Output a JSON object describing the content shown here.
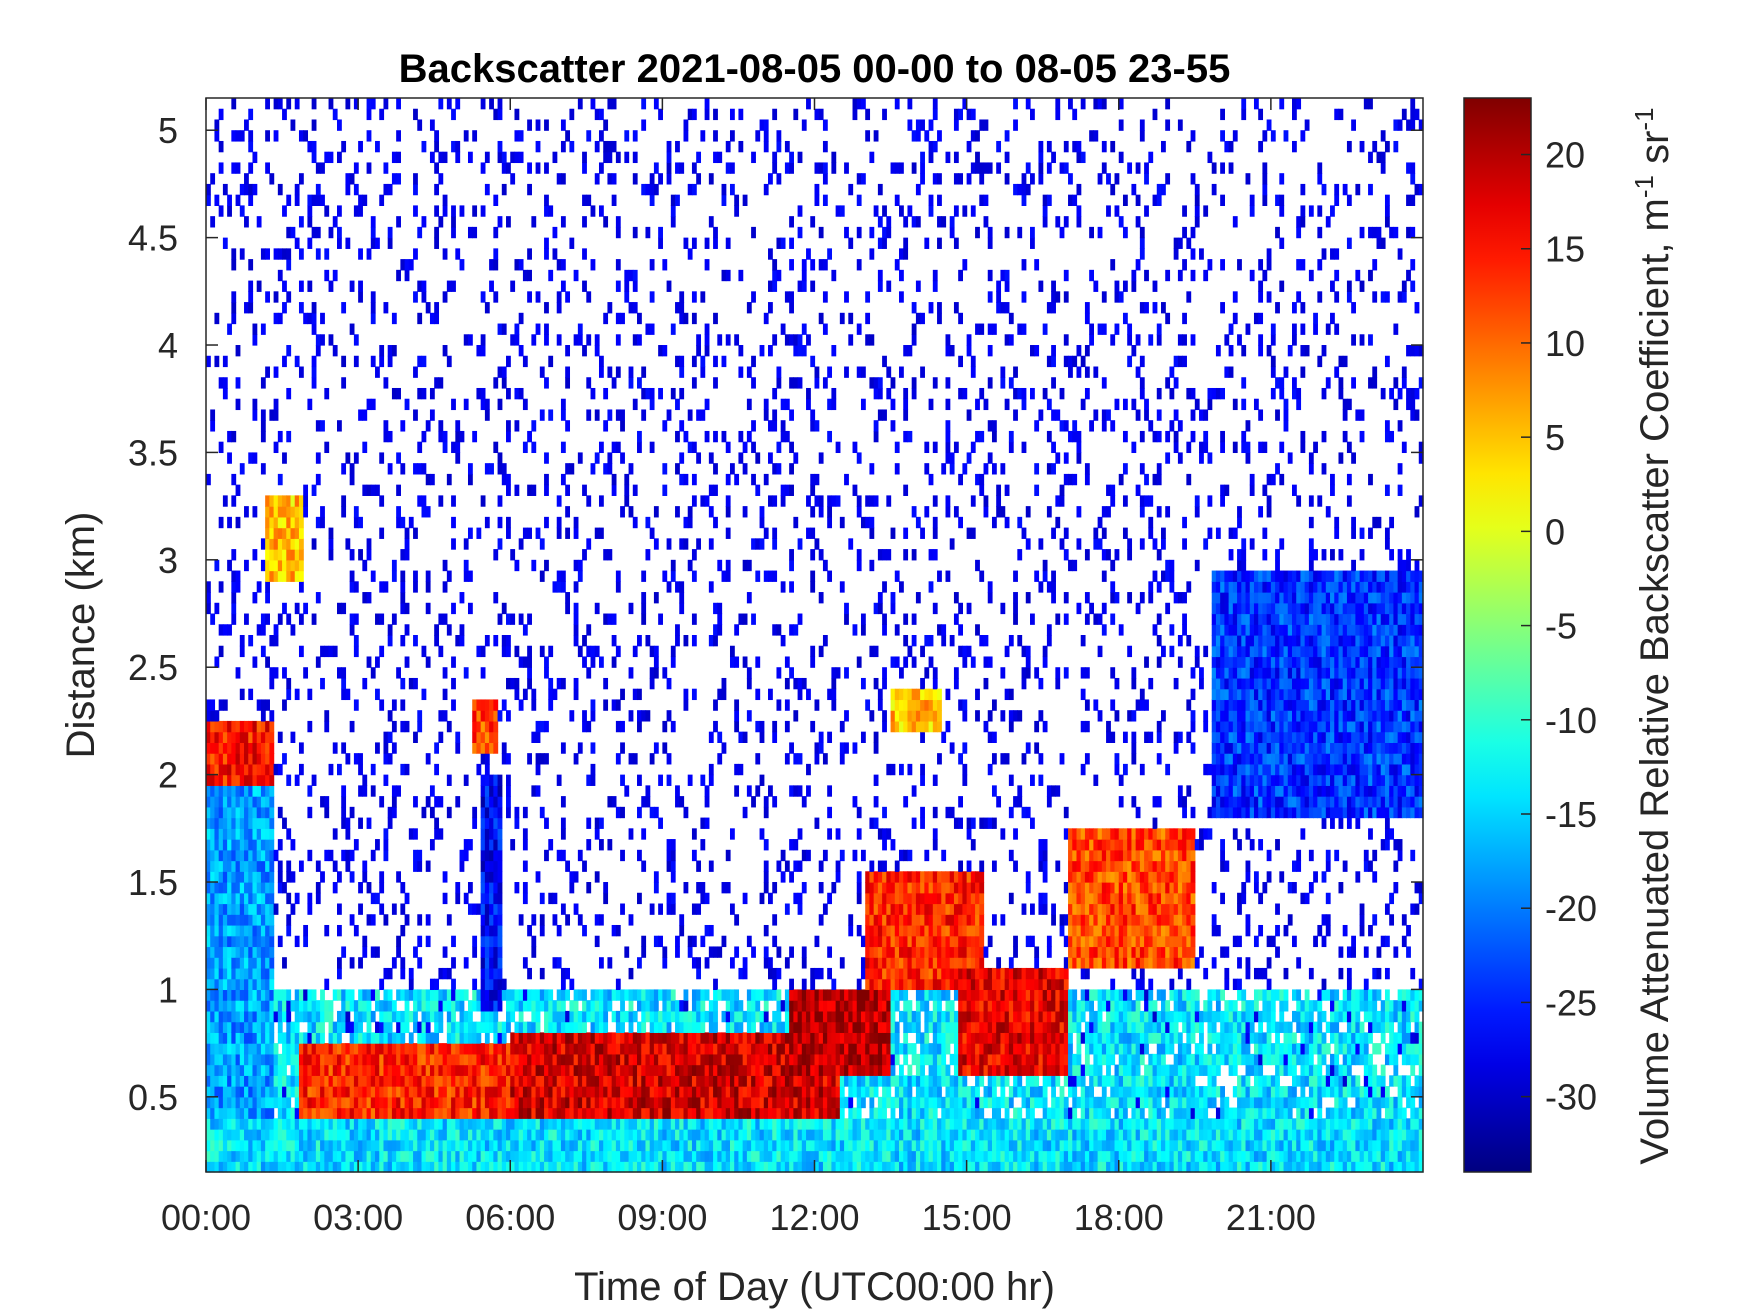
{
  "chart_data": {
    "type": "heatmap",
    "title": "Backscatter 2021-08-05 00-00 to 08-05 23-55",
    "xlabel": "Time of Day (UTC00:00 hr)",
    "ylabel": "Distance (km)",
    "colorbar_label": "Volume Attenuated Relative Backscatter Coefficient, m",
    "colorbar_label_sup1": "-1",
    "colorbar_label_mid": " sr",
    "colorbar_label_sup2": "-1",
    "colormap": "jet",
    "xlim": [
      0,
      24
    ],
    "ylim": [
      0.15,
      5.15
    ],
    "clim": [
      -34,
      23
    ],
    "x_ticks": [
      0,
      3,
      6,
      9,
      12,
      15,
      18,
      21
    ],
    "x_tick_labels": [
      "00:00",
      "03:00",
      "06:00",
      "09:00",
      "12:00",
      "15:00",
      "18:00",
      "21:00"
    ],
    "y_ticks": [
      0.5,
      1,
      1.5,
      2,
      2.5,
      3,
      3.5,
      4,
      4.5,
      5
    ],
    "y_tick_labels": [
      "0.5",
      "1",
      "1.5",
      "2",
      "2.5",
      "3",
      "3.5",
      "4",
      "4.5",
      "5"
    ],
    "colorbar_ticks": [
      20,
      15,
      10,
      5,
      0,
      -5,
      -10,
      -15,
      -20,
      -25,
      -30
    ],
    "colorbar_tick_labels": [
      "20",
      "15",
      "10",
      "5",
      "0",
      "-5",
      "-10",
      "-15",
      "-20",
      "-25",
      "-30"
    ],
    "grid": false,
    "features": [
      {
        "x_range": [
          0,
          1.3
        ],
        "y_range": [
          0.15,
          1.95
        ],
        "value": -18
      },
      {
        "x_range": [
          0,
          1.3
        ],
        "y_range": [
          1.95,
          2.25
        ],
        "value": 15
      },
      {
        "x_range": [
          1.1,
          1.9
        ],
        "y_range": [
          2.9,
          3.3
        ],
        "value": 5
      },
      {
        "x_range": [
          5.2,
          5.7
        ],
        "y_range": [
          2.1,
          2.35
        ],
        "value": 12
      },
      {
        "x_range": [
          5.4,
          5.8
        ],
        "y_range": [
          0.9,
          2.0
        ],
        "value": -27
      },
      {
        "x_range": [
          1.8,
          6.0
        ],
        "y_range": [
          0.35,
          0.75
        ],
        "value": 14
      },
      {
        "x_range": [
          6.0,
          12.5
        ],
        "y_range": [
          0.4,
          0.8
        ],
        "value": 18
      },
      {
        "x_range": [
          11.5,
          13.5
        ],
        "y_range": [
          0.6,
          1.0
        ],
        "value": 20
      },
      {
        "x_range": [
          13.0,
          15.3
        ],
        "y_range": [
          1.0,
          1.55
        ],
        "value": 14
      },
      {
        "x_range": [
          13.5,
          14.5
        ],
        "y_range": [
          2.2,
          2.4
        ],
        "value": 5
      },
      {
        "x_range": [
          14.8,
          17.0
        ],
        "y_range": [
          0.6,
          1.1
        ],
        "value": 17
      },
      {
        "x_range": [
          17.0,
          19.5
        ],
        "y_range": [
          1.1,
          1.75
        ],
        "value": 12
      },
      {
        "x_range": [
          19.8,
          24.0
        ],
        "y_range": [
          1.8,
          2.95
        ],
        "value": -24
      },
      {
        "x_range": [
          0,
          24.0
        ],
        "y_range": [
          0.15,
          0.4
        ],
        "value": -14
      }
    ]
  }
}
